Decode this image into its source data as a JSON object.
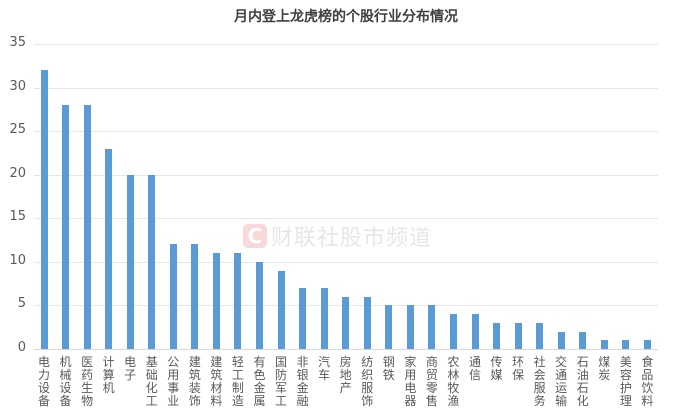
{
  "title": "月内登上龙虎榜的个股行业分布情况",
  "watermark": {
    "logo": "C",
    "text": "财联社股市频道"
  },
  "colors": {
    "bar": "#5b9bd5",
    "grid": "#e6e6e6",
    "text": "#595959"
  },
  "chart_data": {
    "type": "bar",
    "title": "月内登上龙虎榜的个股行业分布情况",
    "xlabel": "",
    "ylabel": "",
    "ylim": [
      0,
      35
    ],
    "yticks": [
      0,
      5,
      10,
      15,
      20,
      25,
      30,
      35
    ],
    "grid": true,
    "legend": null,
    "categories": [
      "电力设备",
      "机械设备",
      "医药生物",
      "计算机",
      "电子",
      "基础化工",
      "公用事业",
      "建筑装饰",
      "建筑材料",
      "轻工制造",
      "有色金属",
      "国防军工",
      "非银金融",
      "汽车",
      "房地产",
      "纺织服饰",
      "钢铁",
      "家用电器",
      "商贸零售",
      "农林牧渔",
      "通信",
      "传媒",
      "环保",
      "社会服务",
      "交通运输",
      "石油石化",
      "煤炭",
      "美容护理",
      "食品饮料"
    ],
    "values": [
      32,
      28,
      28,
      23,
      20,
      20,
      12,
      12,
      11,
      11,
      10,
      9,
      7,
      7,
      6,
      6,
      5,
      5,
      5,
      4,
      4,
      3,
      3,
      3,
      2,
      2,
      1,
      1,
      1
    ]
  }
}
